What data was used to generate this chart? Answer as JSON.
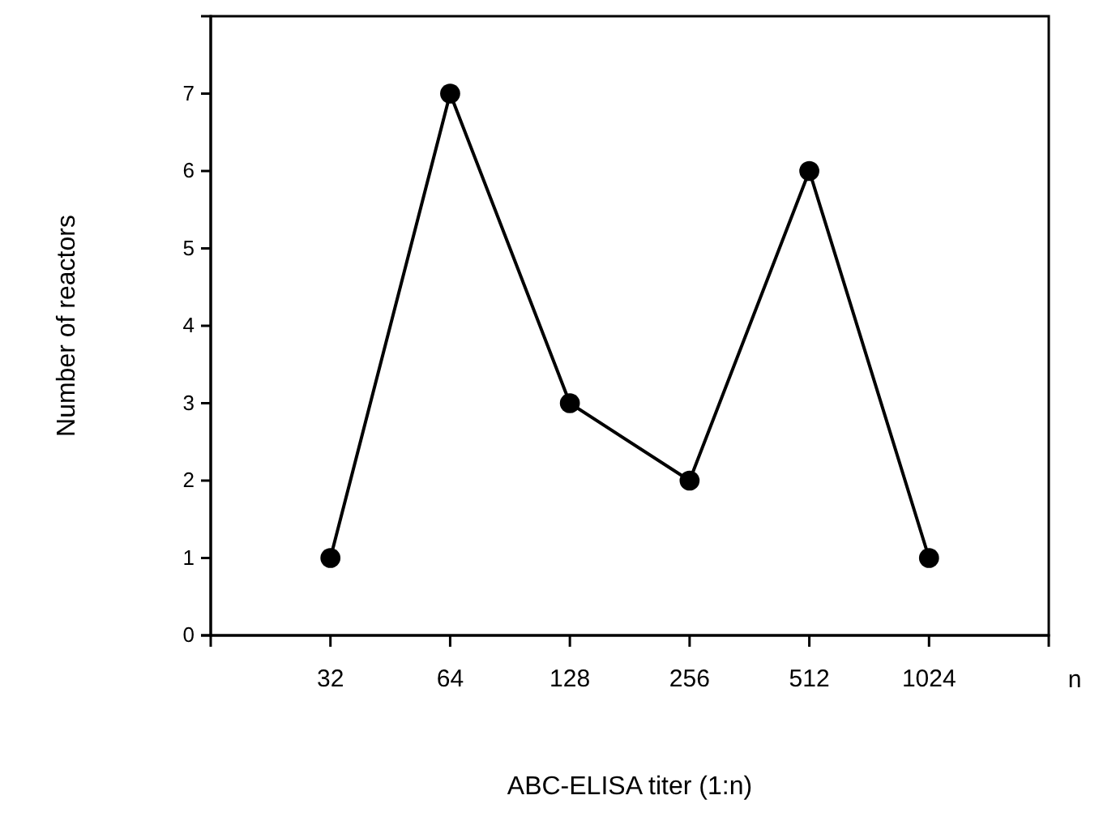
{
  "chart_data": {
    "type": "line",
    "xlabel": "ABC-ELISA titer (1:n)",
    "ylabel": "Number of reactors",
    "categories": [
      "32",
      "64",
      "128",
      "256",
      "512",
      "1024"
    ],
    "series": [
      {
        "color": "#000000",
        "values": [
          1,
          7,
          3,
          2,
          6,
          1
        ]
      }
    ],
    "ylim": [
      0,
      8
    ],
    "yticks": [
      0,
      1,
      2,
      3,
      4,
      5,
      6,
      7
    ],
    "marker": "circle",
    "line_style": "solid",
    "grid": false,
    "annotations": [
      "n"
    ]
  }
}
